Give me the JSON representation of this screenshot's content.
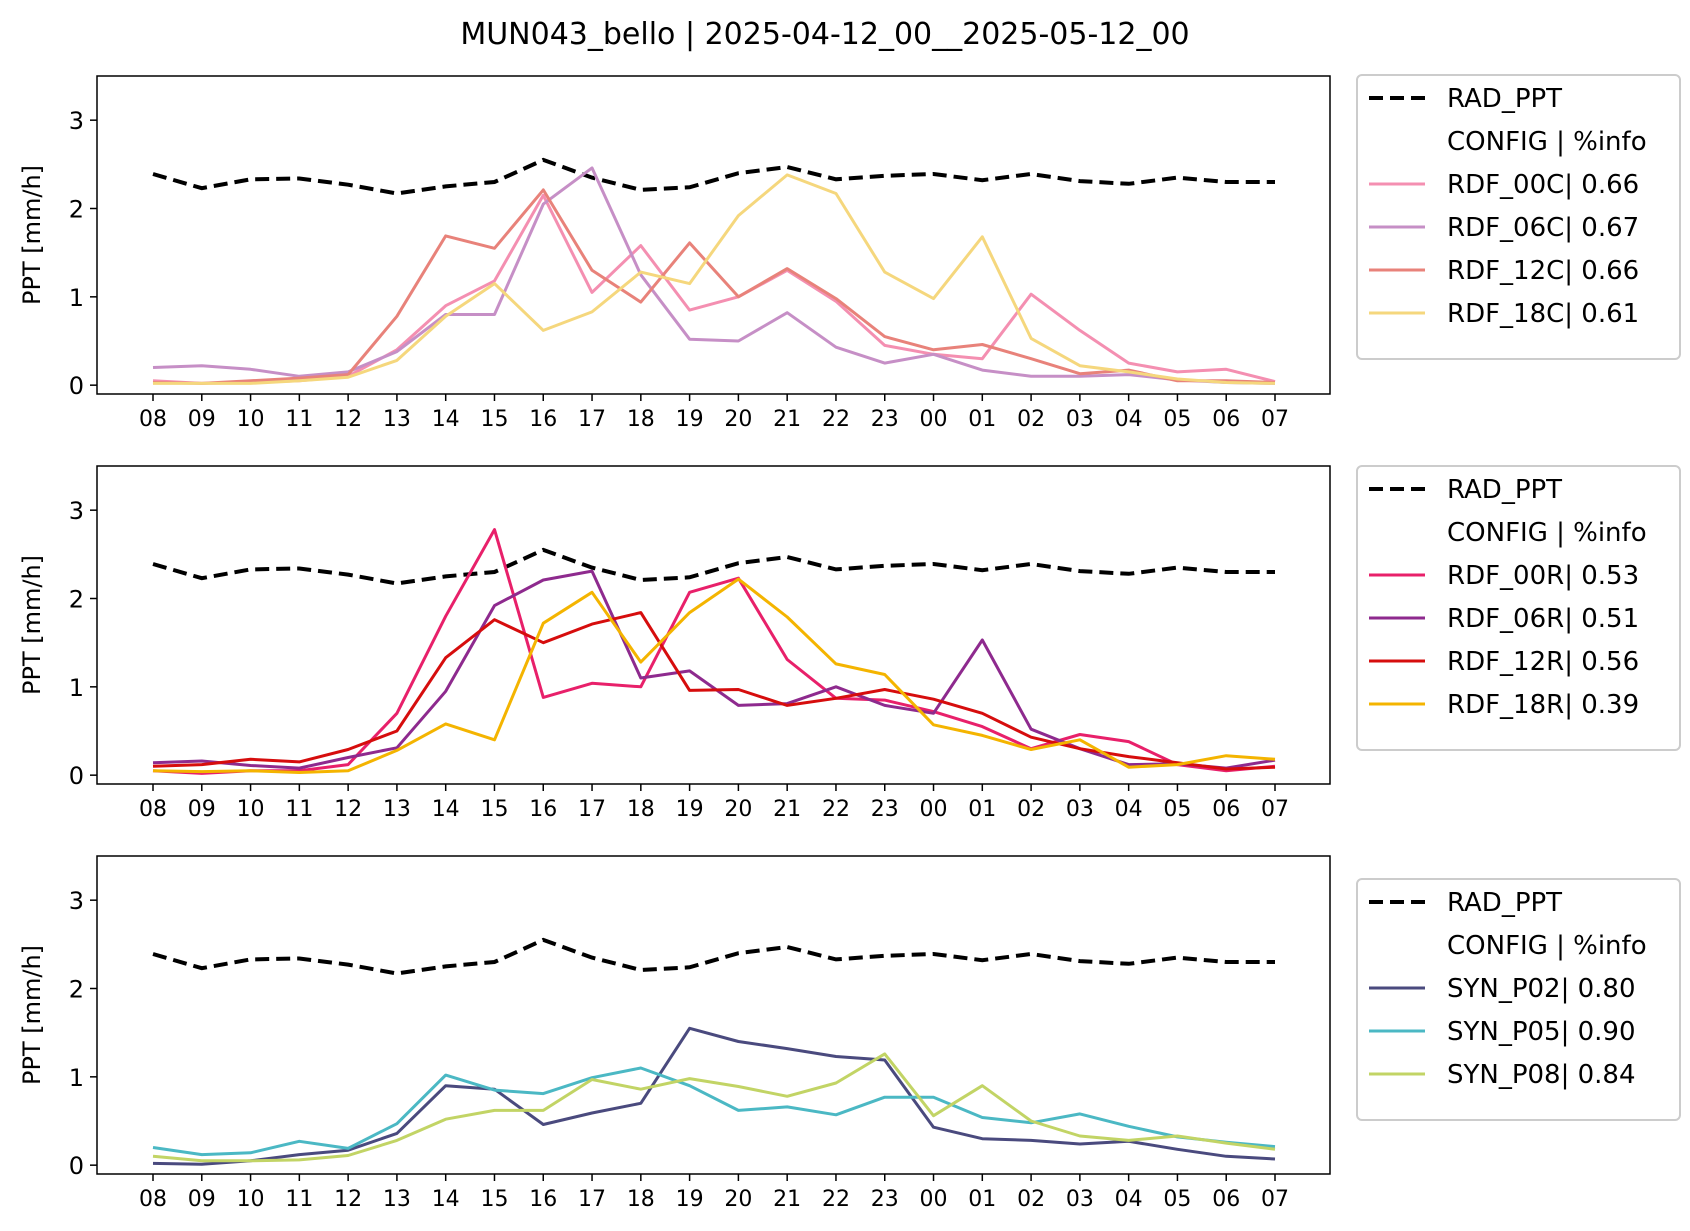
{
  "figure": {
    "title": "MUN043_bello | 2025-04-12_00__2025-05-12_00"
  },
  "chart_data": [
    {
      "type": "line",
      "ylabel": "PPT [mm/h]",
      "ylim": [
        -0.1,
        3.5
      ],
      "yticks": [
        0,
        1,
        2,
        3
      ],
      "categories": [
        "08",
        "09",
        "10",
        "11",
        "12",
        "13",
        "14",
        "15",
        "16",
        "17",
        "18",
        "19",
        "20",
        "21",
        "22",
        "23",
        "00",
        "01",
        "02",
        "03",
        "04",
        "05",
        "06",
        "07"
      ],
      "legend": {
        "placement": "right",
        "header": "CONFIG  | %info"
      },
      "reference": {
        "name": "RAD_PPT",
        "color": "#000000",
        "style": "dashed",
        "values": [
          2.39,
          2.23,
          2.33,
          2.34,
          2.27,
          2.17,
          2.25,
          2.3,
          2.55,
          2.35,
          2.21,
          2.24,
          2.4,
          2.47,
          2.33,
          2.37,
          2.39,
          2.32,
          2.39,
          2.31,
          2.28,
          2.35,
          2.3,
          2.3
        ]
      },
      "series": [
        {
          "name": "RDF_00C| 0.66",
          "color": "#f48fb1",
          "values": [
            0.05,
            0.02,
            0.03,
            0.05,
            0.1,
            0.4,
            0.9,
            1.18,
            2.15,
            1.05,
            1.58,
            0.85,
            1.0,
            1.3,
            0.95,
            0.45,
            0.35,
            0.3,
            1.03,
            0.62,
            0.25,
            0.15,
            0.18,
            0.04
          ]
        },
        {
          "name": "RDF_06C| 0.67",
          "color": "#c68fc6",
          "values": [
            0.2,
            0.22,
            0.18,
            0.1,
            0.15,
            0.38,
            0.8,
            0.8,
            2.05,
            2.46,
            1.25,
            0.52,
            0.5,
            0.82,
            0.43,
            0.25,
            0.35,
            0.17,
            0.1,
            0.1,
            0.12,
            0.06,
            0.03,
            0.02
          ]
        },
        {
          "name": "RDF_12C| 0.66",
          "color": "#e8827a",
          "values": [
            0.03,
            0.02,
            0.05,
            0.08,
            0.12,
            0.78,
            1.69,
            1.55,
            2.21,
            1.3,
            0.94,
            1.61,
            1.0,
            1.32,
            0.98,
            0.55,
            0.4,
            0.46,
            0.3,
            0.13,
            0.17,
            0.05,
            0.05,
            0.03
          ]
        },
        {
          "name": "RDF_18C| 0.61",
          "color": "#f5d77d",
          "values": [
            0.02,
            0.02,
            0.02,
            0.05,
            0.09,
            0.28,
            0.78,
            1.15,
            0.62,
            0.83,
            1.28,
            1.15,
            1.92,
            2.38,
            2.17,
            1.28,
            0.98,
            1.68,
            0.53,
            0.22,
            0.15,
            0.07,
            0.03,
            0.02
          ]
        }
      ]
    },
    {
      "type": "line",
      "ylabel": "PPT [mm/h]",
      "ylim": [
        -0.1,
        3.5
      ],
      "yticks": [
        0,
        1,
        2,
        3
      ],
      "categories": [
        "08",
        "09",
        "10",
        "11",
        "12",
        "13",
        "14",
        "15",
        "16",
        "17",
        "18",
        "19",
        "20",
        "21",
        "22",
        "23",
        "00",
        "01",
        "02",
        "03",
        "04",
        "05",
        "06",
        "07"
      ],
      "legend": {
        "placement": "right",
        "header": "CONFIG  | %info"
      },
      "reference": {
        "name": "RAD_PPT",
        "color": "#000000",
        "style": "dashed",
        "values": [
          2.39,
          2.23,
          2.33,
          2.34,
          2.27,
          2.17,
          2.25,
          2.3,
          2.55,
          2.35,
          2.21,
          2.24,
          2.4,
          2.47,
          2.33,
          2.37,
          2.39,
          2.32,
          2.39,
          2.31,
          2.28,
          2.35,
          2.3,
          2.3
        ]
      },
      "series": [
        {
          "name": "RDF_00R| 0.53",
          "color": "#e8206a",
          "values": [
            0.05,
            0.02,
            0.05,
            0.05,
            0.12,
            0.7,
            1.8,
            2.78,
            0.88,
            1.04,
            1.0,
            2.07,
            2.23,
            1.31,
            0.87,
            0.85,
            0.72,
            0.55,
            0.3,
            0.46,
            0.38,
            0.12,
            0.05,
            0.1
          ]
        },
        {
          "name": "RDF_06R| 0.51",
          "color": "#8e2a8e",
          "values": [
            0.14,
            0.16,
            0.11,
            0.08,
            0.2,
            0.31,
            0.95,
            1.92,
            2.21,
            2.31,
            1.1,
            1.18,
            0.79,
            0.81,
            1.0,
            0.79,
            0.7,
            1.53,
            0.52,
            0.3,
            0.12,
            0.13,
            0.08,
            0.17
          ]
        },
        {
          "name": "RDF_12R| 0.56",
          "color": "#d60d0d",
          "values": [
            0.1,
            0.12,
            0.18,
            0.15,
            0.29,
            0.5,
            1.33,
            1.76,
            1.5,
            1.71,
            1.84,
            0.96,
            0.97,
            0.79,
            0.87,
            0.97,
            0.86,
            0.7,
            0.43,
            0.3,
            0.21,
            0.14,
            0.07,
            0.09
          ]
        },
        {
          "name": "RDF_18R| 0.39",
          "color": "#f4b400",
          "values": [
            0.05,
            0.04,
            0.05,
            0.03,
            0.05,
            0.28,
            0.58,
            0.4,
            1.72,
            2.07,
            1.28,
            1.84,
            2.22,
            1.79,
            1.26,
            1.14,
            0.57,
            0.45,
            0.29,
            0.4,
            0.09,
            0.12,
            0.22,
            0.18
          ]
        }
      ]
    },
    {
      "type": "line",
      "ylabel": "PPT [mm/h]",
      "ylim": [
        -0.1,
        3.5
      ],
      "yticks": [
        0,
        1,
        2,
        3
      ],
      "categories": [
        "08",
        "09",
        "10",
        "11",
        "12",
        "13",
        "14",
        "15",
        "16",
        "17",
        "18",
        "19",
        "20",
        "21",
        "22",
        "23",
        "00",
        "01",
        "02",
        "03",
        "04",
        "05",
        "06",
        "07"
      ],
      "legend": {
        "placement": "right",
        "header": "CONFIG  | %info"
      },
      "reference": {
        "name": "RAD_PPT",
        "color": "#000000",
        "style": "dashed",
        "values": [
          2.39,
          2.23,
          2.33,
          2.34,
          2.27,
          2.17,
          2.25,
          2.3,
          2.55,
          2.35,
          2.21,
          2.24,
          2.4,
          2.47,
          2.33,
          2.37,
          2.39,
          2.32,
          2.39,
          2.31,
          2.28,
          2.35,
          2.3,
          2.3
        ]
      },
      "series": [
        {
          "name": "SYN_P02| 0.80",
          "color": "#4a4a7e",
          "values": [
            0.02,
            0.01,
            0.05,
            0.12,
            0.17,
            0.36,
            0.9,
            0.86,
            0.46,
            0.59,
            0.7,
            1.55,
            1.4,
            1.32,
            1.23,
            1.19,
            0.43,
            0.3,
            0.28,
            0.24,
            0.27,
            0.18,
            0.1,
            0.07
          ]
        },
        {
          "name": "SYN_P05| 0.90",
          "color": "#4bb8c4",
          "values": [
            0.2,
            0.12,
            0.14,
            0.27,
            0.19,
            0.47,
            1.02,
            0.85,
            0.81,
            0.99,
            1.1,
            0.9,
            0.62,
            0.66,
            0.57,
            0.77,
            0.77,
            0.54,
            0.48,
            0.58,
            0.44,
            0.32,
            0.26,
            0.21
          ]
        },
        {
          "name": "SYN_P08| 0.84",
          "color": "#c2d465",
          "values": [
            0.1,
            0.05,
            0.05,
            0.06,
            0.11,
            0.28,
            0.52,
            0.62,
            0.62,
            0.97,
            0.86,
            0.98,
            0.89,
            0.78,
            0.93,
            1.26,
            0.56,
            0.9,
            0.5,
            0.33,
            0.28,
            0.33,
            0.25,
            0.18
          ]
        }
      ]
    }
  ]
}
